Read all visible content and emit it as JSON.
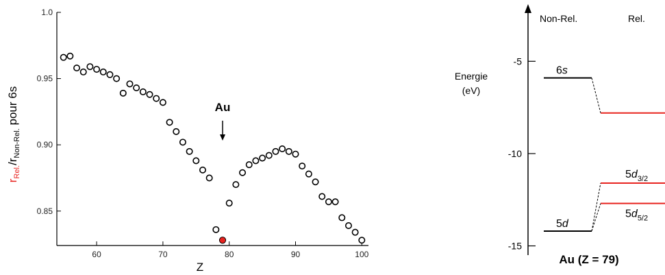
{
  "colors": {
    "relativistic": "#e8231f",
    "ink": "#000000",
    "marker_fill": "#ffffff",
    "highlight": "#e8231f"
  },
  "chart_data": [
    {
      "type": "scatter",
      "xlabel": "Z",
      "ylabel_parts": {
        "rel": "r",
        "rel_sub": "Rel.",
        "slash": "/r",
        "nonrel_sub": "Non-Rel.",
        "tail": " pour 6s"
      },
      "xlim": [
        54,
        101
      ],
      "ylim": [
        0.824,
        1.0
      ],
      "xticks": [
        60,
        70,
        80,
        90,
        100
      ],
      "xtick_labels": [
        "60",
        "70",
        "80",
        "90",
        "100"
      ],
      "yticks": [
        0.85,
        0.9,
        0.95,
        1.0
      ],
      "ytick_labels": [
        "0.85",
        "0.90",
        "0.95",
        "1.0"
      ],
      "annotation": {
        "text": "Au",
        "x": 79
      },
      "highlight_point": {
        "x": 79,
        "y": 0.828
      },
      "points": [
        [
          55,
          0.966
        ],
        [
          56,
          0.967
        ],
        [
          57,
          0.958
        ],
        [
          58,
          0.955
        ],
        [
          59,
          0.959
        ],
        [
          60,
          0.957
        ],
        [
          61,
          0.955
        ],
        [
          62,
          0.953
        ],
        [
          63,
          0.95
        ],
        [
          64,
          0.939
        ],
        [
          65,
          0.946
        ],
        [
          66,
          0.943
        ],
        [
          67,
          0.94
        ],
        [
          68,
          0.938
        ],
        [
          69,
          0.935
        ],
        [
          70,
          0.932
        ],
        [
          71,
          0.917
        ],
        [
          72,
          0.91
        ],
        [
          73,
          0.902
        ],
        [
          74,
          0.895
        ],
        [
          75,
          0.888
        ],
        [
          76,
          0.881
        ],
        [
          77,
          0.875
        ],
        [
          78,
          0.836
        ],
        [
          80,
          0.856
        ],
        [
          81,
          0.87
        ],
        [
          82,
          0.879
        ],
        [
          83,
          0.885
        ],
        [
          84,
          0.888
        ],
        [
          85,
          0.89
        ],
        [
          86,
          0.892
        ],
        [
          87,
          0.895
        ],
        [
          88,
          0.897
        ],
        [
          89,
          0.895
        ],
        [
          90,
          0.893
        ],
        [
          91,
          0.884
        ],
        [
          92,
          0.878
        ],
        [
          93,
          0.872
        ],
        [
          94,
          0.861
        ],
        [
          95,
          0.857
        ],
        [
          96,
          0.857
        ],
        [
          97,
          0.845
        ],
        [
          98,
          0.839
        ],
        [
          99,
          0.834
        ],
        [
          100,
          0.828
        ]
      ]
    },
    {
      "type": "energy-level diagram",
      "title": "Au (Z = 79)",
      "ylabel_line1": "Energie",
      "ylabel_line2": "(eV)",
      "ylim": [
        -15.5,
        -2.2
      ],
      "yticks": [
        -5,
        -10,
        -15
      ],
      "ytick_labels": [
        "-5",
        "-10",
        "-15"
      ],
      "columns": {
        "nonrel": "Non-Rel.",
        "rel": "Rel."
      },
      "levels": [
        {
          "label": "6",
          "label_it": "s",
          "sub": "",
          "column": "nonrel",
          "energy": -5.9
        },
        {
          "label": "5",
          "label_it": "d",
          "sub": "",
          "column": "nonrel",
          "energy": -14.2
        },
        {
          "label": "",
          "label_it": "",
          "sub": "",
          "column": "rel",
          "energy": -7.8
        },
        {
          "label": "5",
          "label_it": "d",
          "sub": "3/2",
          "column": "rel",
          "energy": -11.6
        },
        {
          "label": "5",
          "label_it": "d",
          "sub": "5/2",
          "column": "rel",
          "energy": -12.7
        }
      ],
      "connections": [
        [
          0,
          2
        ],
        [
          1,
          3
        ],
        [
          1,
          4
        ]
      ]
    }
  ]
}
